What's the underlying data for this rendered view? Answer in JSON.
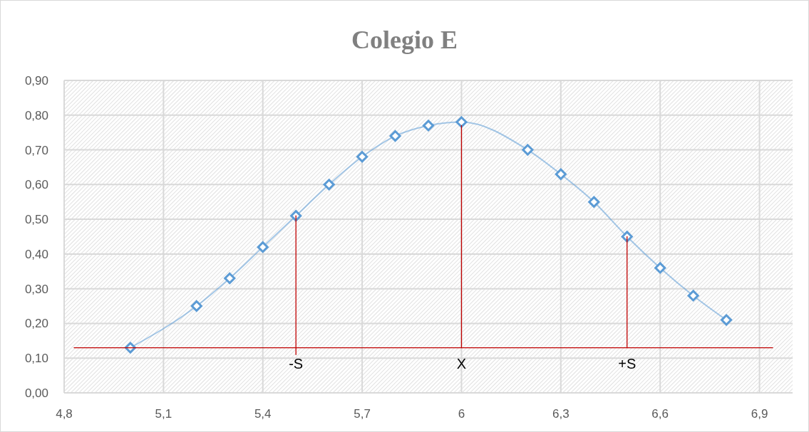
{
  "chart_data": {
    "type": "line",
    "title": "Colegio E",
    "xlim": [
      4.8,
      7.0
    ],
    "xticks": [
      {
        "value": 4.8,
        "label": "4,8"
      },
      {
        "value": 5.1,
        "label": "5,1"
      },
      {
        "value": 5.4,
        "label": "5,4"
      },
      {
        "value": 5.7,
        "label": "5,7"
      },
      {
        "value": 6,
        "label": "6"
      },
      {
        "value": 6.3,
        "label": "6,3"
      },
      {
        "value": 6.6,
        "label": "6,6"
      },
      {
        "value": 6.9,
        "label": "6,9"
      }
    ],
    "ylim": [
      0,
      0.9
    ],
    "yticks": [
      {
        "value": 0,
        "label": "0,00"
      },
      {
        "value": 0.1,
        "label": "0,10"
      },
      {
        "value": 0.2,
        "label": "0,20"
      },
      {
        "value": 0.3,
        "label": "0,30"
      },
      {
        "value": 0.4,
        "label": "0,40"
      },
      {
        "value": 0.5,
        "label": "0,50"
      },
      {
        "value": 0.6,
        "label": "0,60"
      },
      {
        "value": 0.7,
        "label": "0,70"
      },
      {
        "value": 0.8,
        "label": "0,80"
      },
      {
        "value": 0.9,
        "label": "0,90"
      }
    ],
    "grid": true,
    "series": [
      {
        "color": "#5b9bd5",
        "marker": "diamond",
        "x": [
          5.0,
          5.2,
          5.3,
          5.4,
          5.5,
          5.6,
          5.7,
          5.8,
          5.9,
          6.0,
          6.2,
          6.3,
          6.4,
          6.5,
          6.6,
          6.7,
          6.8
        ],
        "values": [
          0.13,
          0.25,
          0.33,
          0.42,
          0.51,
          0.6,
          0.68,
          0.74,
          0.77,
          0.78,
          0.7,
          0.63,
          0.55,
          0.45,
          0.36,
          0.28,
          0.21
        ]
      },
      {
        "color": "#c00000",
        "marker": "none",
        "x": [
          4.83,
          6.94
        ],
        "values": [
          0.13,
          0.13
        ]
      },
      {
        "color": "#c00000",
        "marker": "none",
        "x": [
          5.5,
          5.5
        ],
        "values": [
          0.11,
          0.51
        ]
      },
      {
        "color": "#c00000",
        "marker": "none",
        "x": [
          6.0,
          6.0
        ],
        "values": [
          0.13,
          0.77
        ]
      },
      {
        "color": "#c00000",
        "marker": "none",
        "x": [
          6.5,
          6.5
        ],
        "values": [
          0.13,
          0.45
        ]
      }
    ],
    "annotations": [
      {
        "text": "-S",
        "x": 5.5,
        "y": 0.13
      },
      {
        "text": "X",
        "x": 6.0,
        "y": 0.13
      },
      {
        "text": "+S",
        "x": 6.5,
        "y": 0.13
      }
    ]
  }
}
